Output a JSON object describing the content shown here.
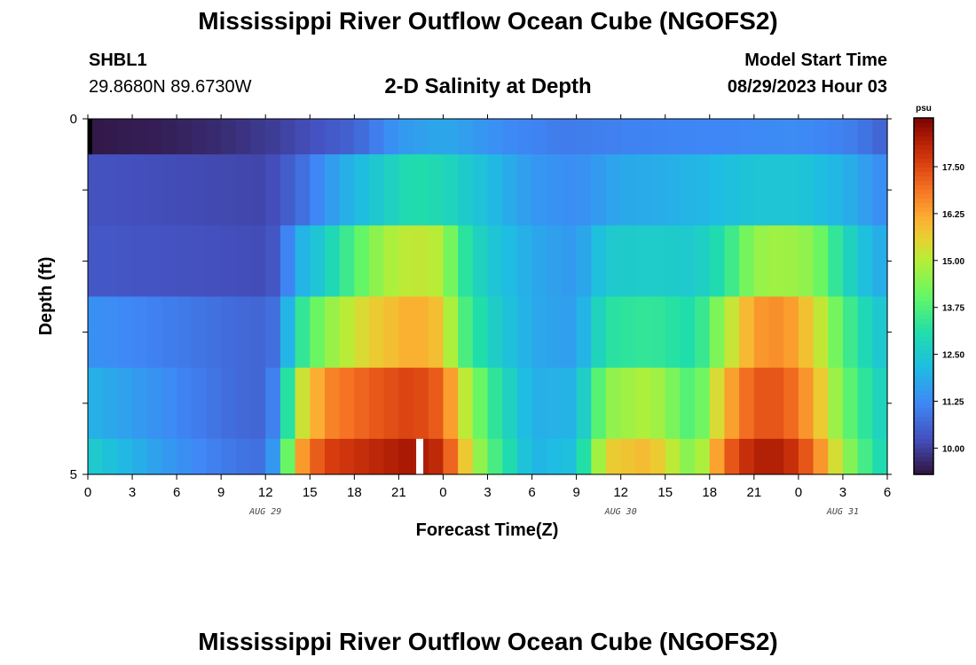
{
  "header": {
    "title": "Mississippi River Outflow Ocean Cube (NGOFS2)",
    "station_id": "SHBL1",
    "coordinates": "29.8680N  89.6730W",
    "subtitle": "2-D Salinity at Depth",
    "start_label": "Model Start Time",
    "start_value": "08/29/2023 Hour 03"
  },
  "footer": {
    "title": "Mississippi River Outflow Ocean Cube (NGOFS2)"
  },
  "chart_data": {
    "type": "heatmap",
    "title": "2-D Salinity at Depth",
    "xlabel": "Forecast Time(Z)",
    "ylabel": "Depth (ft)",
    "units": "psu",
    "x_start_hour": 0,
    "x_end_hour": 54,
    "x_tick_labels": [
      "0",
      "3",
      "6",
      "9",
      "12",
      "15",
      "18",
      "21",
      "0",
      "3",
      "6",
      "9",
      "12",
      "15",
      "18",
      "21",
      "0",
      "3",
      "6"
    ],
    "date_labels": [
      {
        "text": "AUG 29",
        "hour": 12
      },
      {
        "text": "AUG 30",
        "hour": 36
      },
      {
        "text": "AUG 31",
        "hour": 51
      }
    ],
    "y_tick_labels": [
      "0",
      "5"
    ],
    "ylim": [
      0,
      5
    ],
    "colorbar": {
      "label": "psu",
      "min": 9.3,
      "max": 18.8,
      "ticks": [
        "10.00",
        "11.25",
        "12.50",
        "13.75",
        "15.00",
        "16.25",
        "17.50"
      ],
      "tick_values": [
        10.0,
        11.25,
        12.5,
        13.75,
        15.0,
        16.25,
        17.5
      ]
    },
    "layers": [
      {
        "depth_top": 0,
        "depth_bottom": 0.5,
        "keyframes": [
          [
            0,
            9.4
          ],
          [
            5,
            9.5
          ],
          [
            9,
            9.7
          ],
          [
            13,
            10.0
          ],
          [
            18,
            10.6
          ],
          [
            21,
            11.5
          ],
          [
            24,
            11.8
          ],
          [
            28,
            11.3
          ],
          [
            32,
            11.0
          ],
          [
            36,
            11.1
          ],
          [
            42,
            11.2
          ],
          [
            48,
            11.3
          ],
          [
            52,
            11.0
          ],
          [
            54,
            10.5
          ]
        ]
      },
      {
        "depth_top": 0.5,
        "depth_bottom": 1.5,
        "keyframes": [
          [
            0,
            10.3
          ],
          [
            6,
            10.2
          ],
          [
            12,
            10.1
          ],
          [
            14,
            10.6
          ],
          [
            17,
            11.8
          ],
          [
            20,
            12.6
          ],
          [
            22,
            13.1
          ],
          [
            24,
            12.9
          ],
          [
            27,
            12.2
          ],
          [
            30,
            11.5
          ],
          [
            33,
            11.3
          ],
          [
            36,
            11.8
          ],
          [
            39,
            11.9
          ],
          [
            42,
            12.1
          ],
          [
            45,
            12.4
          ],
          [
            48,
            12.4
          ],
          [
            51,
            12.0
          ],
          [
            53,
            11.5
          ],
          [
            54,
            11.2
          ]
        ]
      },
      {
        "depth_top": 1.5,
        "depth_bottom": 2.5,
        "keyframes": [
          [
            0,
            10.4
          ],
          [
            6,
            10.3
          ],
          [
            12,
            10.2
          ],
          [
            13,
            10.5
          ],
          [
            14,
            11.8
          ],
          [
            16,
            12.6
          ],
          [
            18,
            13.8
          ],
          [
            20,
            14.8
          ],
          [
            22,
            15.2
          ],
          [
            24,
            15.0
          ],
          [
            25,
            13.5
          ],
          [
            27,
            12.5
          ],
          [
            30,
            11.8
          ],
          [
            33,
            11.5
          ],
          [
            35,
            12.5
          ],
          [
            38,
            12.6
          ],
          [
            41,
            12.5
          ],
          [
            43,
            13.2
          ],
          [
            45,
            14.6
          ],
          [
            47,
            14.8
          ],
          [
            49,
            14.5
          ],
          [
            51,
            13.0
          ],
          [
            53,
            12.0
          ],
          [
            54,
            11.8
          ]
        ]
      },
      {
        "depth_top": 2.5,
        "depth_bottom": 3.5,
        "keyframes": [
          [
            0,
            11.4
          ],
          [
            6,
            11.0
          ],
          [
            10,
            10.7
          ],
          [
            12,
            10.6
          ],
          [
            13,
            11.0
          ],
          [
            14,
            13.0
          ],
          [
            16,
            14.5
          ],
          [
            19,
            15.6
          ],
          [
            22,
            16.2
          ],
          [
            24,
            15.8
          ],
          [
            25,
            14.0
          ],
          [
            27,
            12.8
          ],
          [
            30,
            11.8
          ],
          [
            33,
            11.6
          ],
          [
            35,
            13.2
          ],
          [
            38,
            13.4
          ],
          [
            41,
            13.0
          ],
          [
            43,
            14.8
          ],
          [
            45,
            16.4
          ],
          [
            47,
            16.6
          ],
          [
            49,
            15.6
          ],
          [
            51,
            13.8
          ],
          [
            53,
            12.6
          ],
          [
            54,
            12.3
          ]
        ]
      },
      {
        "depth_top": 3.5,
        "depth_bottom": 4.5,
        "keyframes": [
          [
            0,
            12.0
          ],
          [
            3,
            11.6
          ],
          [
            6,
            11.2
          ],
          [
            10,
            10.7
          ],
          [
            12,
            10.6
          ],
          [
            13,
            11.6
          ],
          [
            14,
            14.8
          ],
          [
            16,
            16.6
          ],
          [
            19,
            17.2
          ],
          [
            22,
            17.6
          ],
          [
            24,
            17.1
          ],
          [
            25,
            15.6
          ],
          [
            27,
            13.6
          ],
          [
            30,
            11.9
          ],
          [
            33,
            12.0
          ],
          [
            35,
            14.5
          ],
          [
            38,
            15.0
          ],
          [
            41,
            13.6
          ],
          [
            43,
            16.0
          ],
          [
            45,
            17.3
          ],
          [
            47,
            17.3
          ],
          [
            49,
            16.2
          ],
          [
            51,
            14.2
          ],
          [
            53,
            13.0
          ],
          [
            54,
            12.6
          ]
        ]
      },
      {
        "depth_top": 4.5,
        "depth_bottom": 5,
        "keyframes": [
          [
            0,
            12.6
          ],
          [
            3,
            12.0
          ],
          [
            6,
            11.4
          ],
          [
            10,
            10.9
          ],
          [
            12,
            10.8
          ],
          [
            13,
            12.2
          ],
          [
            14,
            16.0
          ],
          [
            16,
            17.6
          ],
          [
            19,
            18.0
          ],
          [
            22,
            18.4
          ],
          [
            24,
            17.9
          ],
          [
            25,
            16.3
          ],
          [
            27,
            14.0
          ],
          [
            30,
            12.0
          ],
          [
            33,
            12.3
          ],
          [
            35,
            15.6
          ],
          [
            38,
            16.0
          ],
          [
            41,
            14.2
          ],
          [
            43,
            17.0
          ],
          [
            45,
            18.2
          ],
          [
            47,
            18.2
          ],
          [
            49,
            17.0
          ],
          [
            51,
            14.8
          ],
          [
            53,
            13.2
          ],
          [
            54,
            12.8
          ]
        ]
      }
    ],
    "gap": {
      "hour": 22,
      "depth_top": 4.5,
      "depth_bottom": 5
    }
  }
}
